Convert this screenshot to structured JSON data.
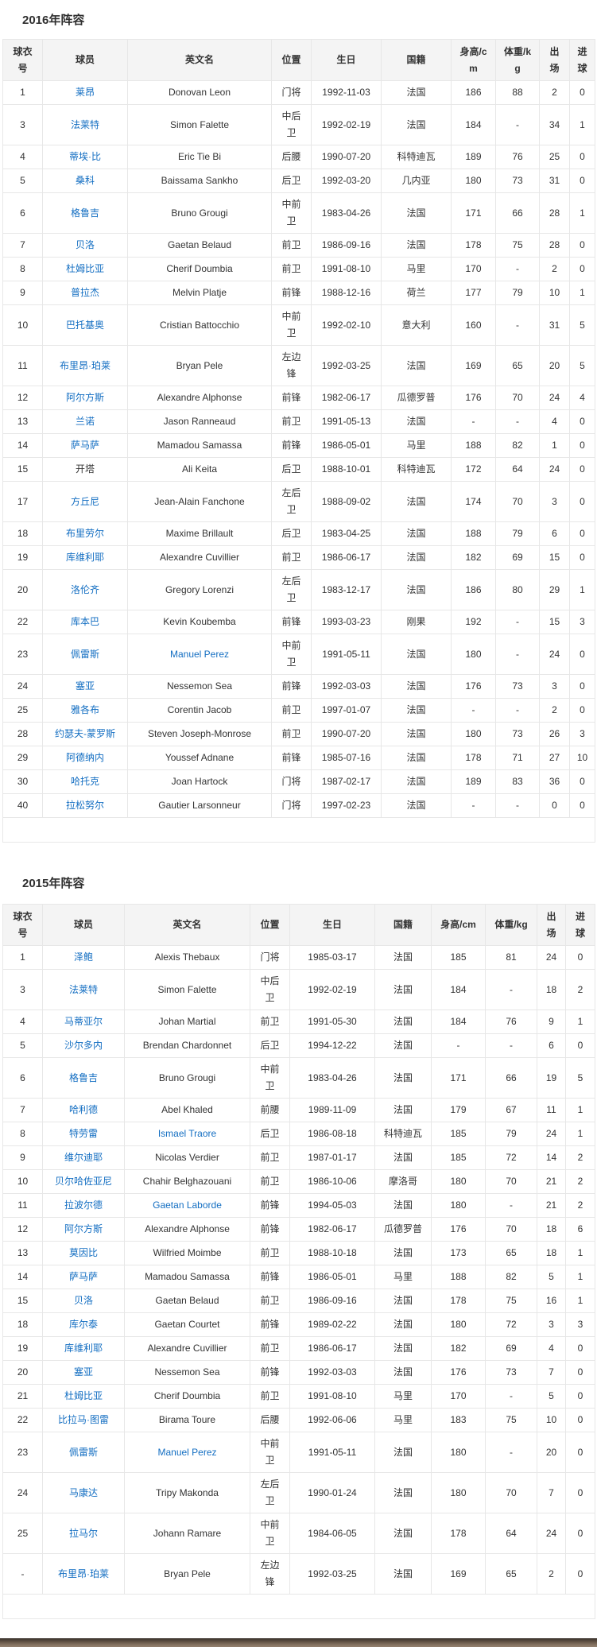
{
  "page": {
    "link_color": "#136ec2",
    "photo_strip_colors": [
      "#37302a",
      "#5d4e42",
      "#93816f"
    ]
  },
  "sections": [
    {
      "heading": "2016年阵容",
      "columns": [
        "球衣号",
        "球员",
        "英文名",
        "位置",
        "生日",
        "国籍",
        "身高/cm",
        "体重/kg",
        "出场",
        "进球"
      ],
      "rows": [
        {
          "no": "1",
          "name": "莱昂",
          "name_link": true,
          "en": "Donovan Leon",
          "en_link": false,
          "pos": "门将",
          "birth": "1992-11-03",
          "nat": "法国",
          "h": "186",
          "w": "88",
          "apps": "2",
          "goals": "0"
        },
        {
          "no": "3",
          "name": "法莱特",
          "name_link": true,
          "en": "Simon Falette",
          "en_link": false,
          "pos": "中后卫",
          "birth": "1992-02-19",
          "nat": "法国",
          "h": "184",
          "w": "-",
          "apps": "34",
          "goals": "1"
        },
        {
          "no": "4",
          "name": "蒂埃·比",
          "name_link": true,
          "en": "Eric Tie Bi",
          "en_link": false,
          "pos": "后腰",
          "birth": "1990-07-20",
          "nat": "科特迪瓦",
          "h": "189",
          "w": "76",
          "apps": "25",
          "goals": "0"
        },
        {
          "no": "5",
          "name": "桑科",
          "name_link": true,
          "en": "Baissama Sankho",
          "en_link": false,
          "pos": "后卫",
          "birth": "1992-03-20",
          "nat": "几内亚",
          "h": "180",
          "w": "73",
          "apps": "31",
          "goals": "0"
        },
        {
          "no": "6",
          "name": "格鲁吉",
          "name_link": true,
          "en": "Bruno Grougi",
          "en_link": false,
          "pos": "中前卫",
          "birth": "1983-04-26",
          "nat": "法国",
          "h": "171",
          "w": "66",
          "apps": "28",
          "goals": "1"
        },
        {
          "no": "7",
          "name": "贝洛",
          "name_link": true,
          "en": "Gaetan Belaud",
          "en_link": false,
          "pos": "前卫",
          "birth": "1986-09-16",
          "nat": "法国",
          "h": "178",
          "w": "75",
          "apps": "28",
          "goals": "0"
        },
        {
          "no": "8",
          "name": "杜姆比亚",
          "name_link": true,
          "en": "Cherif Doumbia",
          "en_link": false,
          "pos": "前卫",
          "birth": "1991-08-10",
          "nat": "马里",
          "h": "170",
          "w": "-",
          "apps": "2",
          "goals": "0"
        },
        {
          "no": "9",
          "name": "普拉杰",
          "name_link": true,
          "en": "Melvin Platje",
          "en_link": false,
          "pos": "前锋",
          "birth": "1988-12-16",
          "nat": "荷兰",
          "h": "177",
          "w": "79",
          "apps": "10",
          "goals": "1"
        },
        {
          "no": "10",
          "name": "巴托基奥",
          "name_link": true,
          "en": "Cristian Battocchio",
          "en_link": false,
          "pos": "中前卫",
          "birth": "1992-02-10",
          "nat": "意大利",
          "h": "160",
          "w": "-",
          "apps": "31",
          "goals": "5"
        },
        {
          "no": "11",
          "name": "布里昂·珀莱",
          "name_link": true,
          "en": "Bryan Pele",
          "en_link": false,
          "pos": "左边锋",
          "birth": "1992-03-25",
          "nat": "法国",
          "h": "169",
          "w": "65",
          "apps": "20",
          "goals": "5"
        },
        {
          "no": "12",
          "name": "阿尔方斯",
          "name_link": true,
          "en": "Alexandre Alphonse",
          "en_link": false,
          "pos": "前锋",
          "birth": "1982-06-17",
          "nat": "瓜德罗普",
          "h": "176",
          "w": "70",
          "apps": "24",
          "goals": "4"
        },
        {
          "no": "13",
          "name": "兰诺",
          "name_link": true,
          "en": "Jason Ranneaud",
          "en_link": false,
          "pos": "前卫",
          "birth": "1991-05-13",
          "nat": "法国",
          "h": "-",
          "w": "-",
          "apps": "4",
          "goals": "0"
        },
        {
          "no": "14",
          "name": "萨马萨",
          "name_link": true,
          "en": "Mamadou Samassa",
          "en_link": false,
          "pos": "前锋",
          "birth": "1986-05-01",
          "nat": "马里",
          "h": "188",
          "w": "82",
          "apps": "1",
          "goals": "0"
        },
        {
          "no": "15",
          "name": "开塔",
          "name_link": false,
          "en": "Ali Keita",
          "en_link": false,
          "pos": "后卫",
          "birth": "1988-10-01",
          "nat": "科特迪瓦",
          "h": "172",
          "w": "64",
          "apps": "24",
          "goals": "0"
        },
        {
          "no": "17",
          "name": "方丘尼",
          "name_link": true,
          "en": "Jean-Alain Fanchone",
          "en_link": false,
          "pos": "左后卫",
          "birth": "1988-09-02",
          "nat": "法国",
          "h": "174",
          "w": "70",
          "apps": "3",
          "goals": "0"
        },
        {
          "no": "18",
          "name": "布里劳尔",
          "name_link": true,
          "en": "Maxime Brillault",
          "en_link": false,
          "pos": "后卫",
          "birth": "1983-04-25",
          "nat": "法国",
          "h": "188",
          "w": "79",
          "apps": "6",
          "goals": "0"
        },
        {
          "no": "19",
          "name": "库维利耶",
          "name_link": true,
          "en": "Alexandre Cuvillier",
          "en_link": false,
          "pos": "前卫",
          "birth": "1986-06-17",
          "nat": "法国",
          "h": "182",
          "w": "69",
          "apps": "15",
          "goals": "0"
        },
        {
          "no": "20",
          "name": "洛伦齐",
          "name_link": true,
          "en": "Gregory Lorenzi",
          "en_link": false,
          "pos": "左后卫",
          "birth": "1983-12-17",
          "nat": "法国",
          "h": "186",
          "w": "80",
          "apps": "29",
          "goals": "1"
        },
        {
          "no": "22",
          "name": "库本巴",
          "name_link": true,
          "en": "Kevin Koubemba",
          "en_link": false,
          "pos": "前锋",
          "birth": "1993-03-23",
          "nat": "刚果",
          "h": "192",
          "w": "-",
          "apps": "15",
          "goals": "3"
        },
        {
          "no": "23",
          "name": "佩雷斯",
          "name_link": true,
          "en": "Manuel Perez",
          "en_link": true,
          "pos": "中前卫",
          "birth": "1991-05-11",
          "nat": "法国",
          "h": "180",
          "w": "-",
          "apps": "24",
          "goals": "0"
        },
        {
          "no": "24",
          "name": "塞亚",
          "name_link": true,
          "en": "Nessemon Sea",
          "en_link": false,
          "pos": "前锋",
          "birth": "1992-03-03",
          "nat": "法国",
          "h": "176",
          "w": "73",
          "apps": "3",
          "goals": "0"
        },
        {
          "no": "25",
          "name": "雅各布",
          "name_link": true,
          "en": "Corentin Jacob",
          "en_link": false,
          "pos": "前卫",
          "birth": "1997-01-07",
          "nat": "法国",
          "h": "-",
          "w": "-",
          "apps": "2",
          "goals": "0"
        },
        {
          "no": "28",
          "name": "约瑟夫-蒙罗斯",
          "name_link": true,
          "en": "Steven Joseph-Monrose",
          "en_link": false,
          "pos": "前卫",
          "birth": "1990-07-20",
          "nat": "法国",
          "h": "180",
          "w": "73",
          "apps": "26",
          "goals": "3"
        },
        {
          "no": "29",
          "name": "阿德纳内",
          "name_link": true,
          "en": "Youssef Adnane",
          "en_link": false,
          "pos": "前锋",
          "birth": "1985-07-16",
          "nat": "法国",
          "h": "178",
          "w": "71",
          "apps": "27",
          "goals": "10"
        },
        {
          "no": "30",
          "name": "哈托克",
          "name_link": true,
          "en": "Joan Hartock",
          "en_link": false,
          "pos": "门将",
          "birth": "1987-02-17",
          "nat": "法国",
          "h": "189",
          "w": "83",
          "apps": "36",
          "goals": "0"
        },
        {
          "no": "40",
          "name": "拉松努尔",
          "name_link": true,
          "en": "Gautier Larsonneur",
          "en_link": false,
          "pos": "门将",
          "birth": "1997-02-23",
          "nat": "法国",
          "h": "-",
          "w": "-",
          "apps": "0",
          "goals": "0"
        }
      ]
    },
    {
      "heading": "2015年阵容",
      "columns": [
        "球衣号",
        "球员",
        "英文名",
        "位置",
        "生日",
        "国籍",
        "身高/cm",
        "体重/kg",
        "出场",
        "进球"
      ],
      "rows": [
        {
          "no": "1",
          "name": "泽鲍",
          "name_link": true,
          "en": "Alexis Thebaux",
          "en_link": false,
          "pos": "门将",
          "birth": "1985-03-17",
          "nat": "法国",
          "h": "185",
          "w": "81",
          "apps": "24",
          "goals": "0"
        },
        {
          "no": "3",
          "name": "法莱特",
          "name_link": true,
          "en": "Simon Falette",
          "en_link": false,
          "pos": "中后卫",
          "birth": "1992-02-19",
          "nat": "法国",
          "h": "184",
          "w": "-",
          "apps": "18",
          "goals": "2"
        },
        {
          "no": "4",
          "name": "马蒂亚尔",
          "name_link": true,
          "en": "Johan Martial",
          "en_link": false,
          "pos": "前卫",
          "birth": "1991-05-30",
          "nat": "法国",
          "h": "184",
          "w": "76",
          "apps": "9",
          "goals": "1"
        },
        {
          "no": "5",
          "name": "沙尔多内",
          "name_link": true,
          "en": "Brendan Chardonnet",
          "en_link": false,
          "pos": "后卫",
          "birth": "1994-12-22",
          "nat": "法国",
          "h": "-",
          "w": "-",
          "apps": "6",
          "goals": "0"
        },
        {
          "no": "6",
          "name": "格鲁吉",
          "name_link": true,
          "en": "Bruno Grougi",
          "en_link": false,
          "pos": "中前卫",
          "birth": "1983-04-26",
          "nat": "法国",
          "h": "171",
          "w": "66",
          "apps": "19",
          "goals": "5"
        },
        {
          "no": "7",
          "name": "哈利德",
          "name_link": true,
          "en": "Abel Khaled",
          "en_link": false,
          "pos": "前腰",
          "birth": "1989-11-09",
          "nat": "法国",
          "h": "179",
          "w": "67",
          "apps": "11",
          "goals": "1"
        },
        {
          "no": "8",
          "name": "特劳雷",
          "name_link": true,
          "en": "Ismael Traore",
          "en_link": true,
          "pos": "后卫",
          "birth": "1986-08-18",
          "nat": "科特迪瓦",
          "h": "185",
          "w": "79",
          "apps": "24",
          "goals": "1"
        },
        {
          "no": "9",
          "name": "维尔迪耶",
          "name_link": true,
          "en": "Nicolas Verdier",
          "en_link": false,
          "pos": "前卫",
          "birth": "1987-01-17",
          "nat": "法国",
          "h": "185",
          "w": "72",
          "apps": "14",
          "goals": "2"
        },
        {
          "no": "10",
          "name": "贝尔哈佐亚尼",
          "name_link": true,
          "en": "Chahir Belghazouani",
          "en_link": false,
          "pos": "前卫",
          "birth": "1986-10-06",
          "nat": "摩洛哥",
          "h": "180",
          "w": "70",
          "apps": "21",
          "goals": "2"
        },
        {
          "no": "11",
          "name": "拉波尔德",
          "name_link": true,
          "en": "Gaetan Laborde",
          "en_link": true,
          "pos": "前锋",
          "birth": "1994-05-03",
          "nat": "法国",
          "h": "180",
          "w": "-",
          "apps": "21",
          "goals": "2"
        },
        {
          "no": "12",
          "name": "阿尔方斯",
          "name_link": true,
          "en": "Alexandre Alphonse",
          "en_link": false,
          "pos": "前锋",
          "birth": "1982-06-17",
          "nat": "瓜德罗普",
          "h": "176",
          "w": "70",
          "apps": "18",
          "goals": "6"
        },
        {
          "no": "13",
          "name": "莫因比",
          "name_link": true,
          "en": "Wilfried Moimbe",
          "en_link": false,
          "pos": "前卫",
          "birth": "1988-10-18",
          "nat": "法国",
          "h": "173",
          "w": "65",
          "apps": "18",
          "goals": "1"
        },
        {
          "no": "14",
          "name": "萨马萨",
          "name_link": true,
          "en": "Mamadou Samassa",
          "en_link": false,
          "pos": "前锋",
          "birth": "1986-05-01",
          "nat": "马里",
          "h": "188",
          "w": "82",
          "apps": "5",
          "goals": "1"
        },
        {
          "no": "15",
          "name": "贝洛",
          "name_link": true,
          "en": "Gaetan Belaud",
          "en_link": false,
          "pos": "前卫",
          "birth": "1986-09-16",
          "nat": "法国",
          "h": "178",
          "w": "75",
          "apps": "16",
          "goals": "1"
        },
        {
          "no": "18",
          "name": "库尔泰",
          "name_link": true,
          "en": "Gaetan Courtet",
          "en_link": false,
          "pos": "前锋",
          "birth": "1989-02-22",
          "nat": "法国",
          "h": "180",
          "w": "72",
          "apps": "3",
          "goals": "3"
        },
        {
          "no": "19",
          "name": "库维利耶",
          "name_link": true,
          "en": "Alexandre Cuvillier",
          "en_link": false,
          "pos": "前卫",
          "birth": "1986-06-17",
          "nat": "法国",
          "h": "182",
          "w": "69",
          "apps": "4",
          "goals": "0"
        },
        {
          "no": "20",
          "name": "塞亚",
          "name_link": true,
          "en": "Nessemon Sea",
          "en_link": false,
          "pos": "前锋",
          "birth": "1992-03-03",
          "nat": "法国",
          "h": "176",
          "w": "73",
          "apps": "7",
          "goals": "0"
        },
        {
          "no": "21",
          "name": "杜姆比亚",
          "name_link": true,
          "en": "Cherif Doumbia",
          "en_link": false,
          "pos": "前卫",
          "birth": "1991-08-10",
          "nat": "马里",
          "h": "170",
          "w": "-",
          "apps": "5",
          "goals": "0"
        },
        {
          "no": "22",
          "name": "比拉马·图雷",
          "name_link": true,
          "en": "Birama Toure",
          "en_link": false,
          "pos": "后腰",
          "birth": "1992-06-06",
          "nat": "马里",
          "h": "183",
          "w": "75",
          "apps": "10",
          "goals": "0"
        },
        {
          "no": "23",
          "name": "佩雷斯",
          "name_link": true,
          "en": "Manuel Perez",
          "en_link": true,
          "pos": "中前卫",
          "birth": "1991-05-11",
          "nat": "法国",
          "h": "180",
          "w": "-",
          "apps": "20",
          "goals": "0"
        },
        {
          "no": "24",
          "name": "马康达",
          "name_link": true,
          "en": "Tripy Makonda",
          "en_link": false,
          "pos": "左后卫",
          "birth": "1990-01-24",
          "nat": "法国",
          "h": "180",
          "w": "70",
          "apps": "7",
          "goals": "0"
        },
        {
          "no": "25",
          "name": "拉马尔",
          "name_link": true,
          "en": "Johann Ramare",
          "en_link": false,
          "pos": "中前卫",
          "birth": "1984-06-05",
          "nat": "法国",
          "h": "178",
          "w": "64",
          "apps": "24",
          "goals": "0"
        },
        {
          "no": "-",
          "name": "布里昂·珀莱",
          "name_link": true,
          "en": "Bryan Pele",
          "en_link": false,
          "pos": "左边锋",
          "birth": "1992-03-25",
          "nat": "法国",
          "h": "169",
          "w": "65",
          "apps": "2",
          "goals": "0"
        }
      ]
    }
  ]
}
